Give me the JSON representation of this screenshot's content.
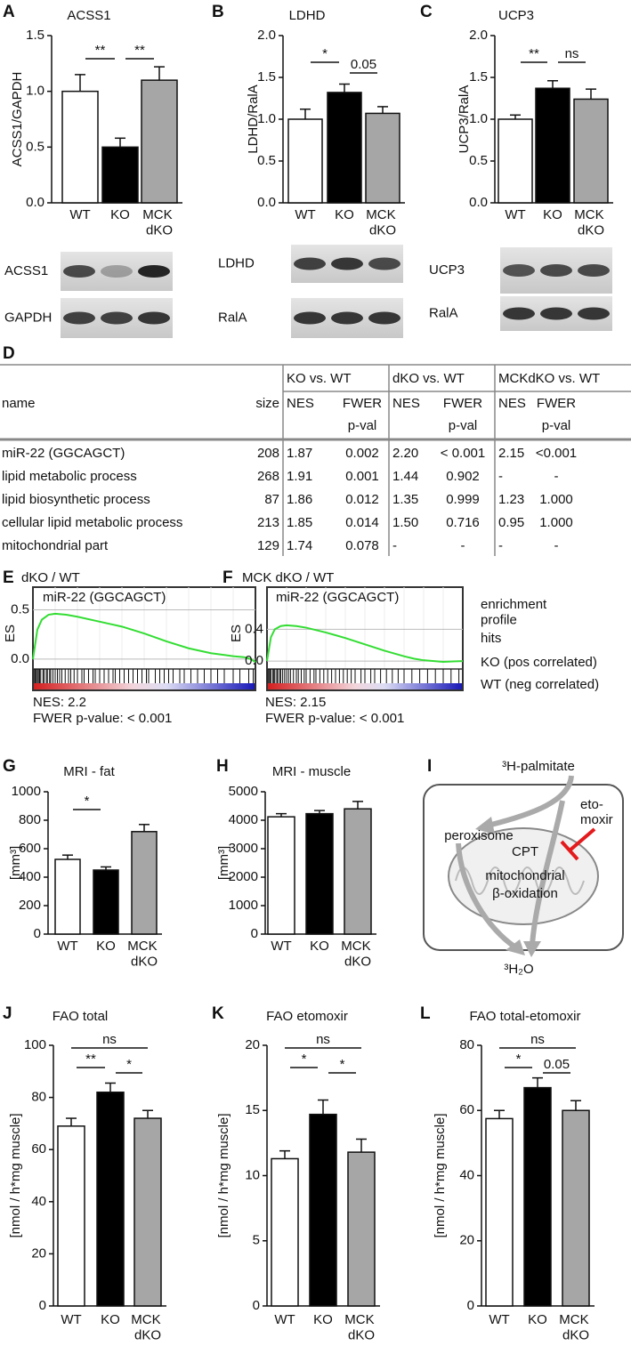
{
  "chart_data": [
    {
      "type": "bar",
      "panel": "A",
      "title": "ACSS1",
      "ylabel": "ACSS1/GAPDH",
      "categories": [
        "WT",
        "KO",
        "MCK dKO"
      ],
      "values": [
        1.0,
        0.5,
        1.1
      ],
      "errors": [
        0.15,
        0.08,
        0.12
      ],
      "colors": [
        "#ffffff",
        "#000000",
        "#a6a6a6"
      ],
      "ylim": [
        0,
        1.5
      ],
      "yticks": [
        {
          "value": 0,
          "label": "0.0"
        },
        0.5,
        {
          "value": 1,
          "label": "1.0"
        },
        1.5
      ],
      "significance": [
        "**",
        "**"
      ],
      "blot_labels": [
        "ACSS1",
        "GAPDH"
      ]
    },
    {
      "type": "bar",
      "panel": "B",
      "title": "LDHD",
      "ylabel": "LDHD/RalA",
      "categories": [
        "WT",
        "KO",
        "MCK dKO"
      ],
      "values": [
        1.0,
        1.32,
        1.07
      ],
      "errors": [
        0.12,
        0.1,
        0.08
      ],
      "colors": [
        "#ffffff",
        "#000000",
        "#a6a6a6"
      ],
      "ylim": [
        0,
        2
      ],
      "yticks": [
        {
          "value": 0,
          "label": "0.0"
        },
        0.5,
        {
          "value": 1,
          "label": "1.0"
        },
        1.5,
        {
          "value": 2,
          "label": "2.0"
        }
      ],
      "significance": [
        "*",
        "0.05"
      ],
      "blot_labels": [
        "LDHD",
        "RalA"
      ]
    },
    {
      "type": "bar",
      "panel": "C",
      "title": "UCP3",
      "ylabel": "UCP3/RalA",
      "categories": [
        "WT",
        "KO",
        "MCK dKO"
      ],
      "values": [
        1.0,
        1.37,
        1.24
      ],
      "errors": [
        0.05,
        0.09,
        0.12
      ],
      "colors": [
        "#ffffff",
        "#000000",
        "#a6a6a6"
      ],
      "ylim": [
        0,
        2
      ],
      "yticks": [
        {
          "value": 0,
          "label": "0.0"
        },
        0.5,
        {
          "value": 1,
          "label": "1.0"
        },
        1.5,
        {
          "value": 2,
          "label": "2.0"
        }
      ],
      "significance": [
        "**",
        "ns"
      ],
      "blot_labels": [
        "UCP3",
        "RalA"
      ]
    },
    {
      "type": "line",
      "panel": "E",
      "title": "dKO / WT",
      "subtitle": "miR-22 (GGCAGCT)",
      "ylabel": "ES",
      "x": [
        0,
        2,
        4,
        7,
        10,
        15,
        20,
        30,
        40,
        50,
        60,
        70,
        80,
        90,
        95,
        98,
        100
      ],
      "values": [
        0,
        0.3,
        0.4,
        0.45,
        0.46,
        0.45,
        0.43,
        0.38,
        0.33,
        0.26,
        0.18,
        0.11,
        0.06,
        0.03,
        0.02,
        0,
        -0.03
      ],
      "color": "#33dd33",
      "xlim": [
        0,
        100
      ],
      "ylim": [
        -0.1,
        0.73
      ],
      "yticks": [
        {
          "value": 0,
          "label": "0.0"
        },
        0.5
      ],
      "grid": true,
      "hits": [
        0.5,
        1,
        1.5,
        2,
        2.5,
        3,
        3.5,
        4.5,
        5,
        6,
        6.5,
        7.5,
        8,
        9,
        10,
        11,
        12,
        13,
        14.5,
        16,
        17,
        18.5,
        20,
        22,
        23,
        25,
        27,
        28,
        30,
        32,
        34,
        36,
        37,
        39,
        41,
        43,
        45,
        47,
        49,
        51,
        52,
        55,
        57,
        59,
        61,
        63,
        66,
        68,
        71,
        74,
        77,
        80,
        83,
        86,
        90,
        93,
        97,
        99
      ],
      "annotations": [
        "NES: 2.2",
        "FWER p-value: < 0.001"
      ]
    },
    {
      "type": "line",
      "panel": "F",
      "title": "MCK dKO / WT",
      "subtitle": "miR-22 (GGCAGCT)",
      "ylabel": "ES",
      "x": [
        0,
        2,
        4,
        7,
        10,
        15,
        20,
        30,
        40,
        50,
        60,
        70,
        75,
        80,
        90,
        100
      ],
      "values": [
        0,
        0.3,
        0.4,
        0.44,
        0.45,
        0.44,
        0.42,
        0.36,
        0.29,
        0.21,
        0.13,
        0.06,
        0.03,
        0.01,
        -0.01,
        0
      ],
      "color": "#33dd33",
      "xlim": [
        0,
        100
      ],
      "ylim": [
        -0.1,
        0.93
      ],
      "yticks": [
        {
          "value": 0,
          "label": "0.0"
        },
        0.4
      ],
      "grid": true,
      "hits": [
        0.5,
        1,
        1.5,
        2,
        3,
        3.5,
        4,
        5,
        5.5,
        6.5,
        7,
        8,
        9,
        10,
        11,
        12,
        13.5,
        15,
        16,
        17.5,
        19,
        20,
        22,
        24,
        25,
        27,
        29,
        31,
        33,
        35,
        37,
        39,
        41,
        43,
        45,
        48,
        50,
        53,
        55,
        58,
        61,
        64,
        67,
        70,
        74,
        78,
        82,
        86,
        90,
        94,
        98
      ],
      "annotations": [
        "NES: 2.15",
        "FWER p-value: < 0.001"
      ]
    },
    {
      "type": "bar",
      "panel": "G",
      "title": "MRI - fat",
      "ylabel": "[mm³]",
      "categories": [
        "WT",
        "KO",
        "MCK dKO"
      ],
      "values": [
        525,
        450,
        720
      ],
      "errors": [
        30,
        22,
        50
      ],
      "colors": [
        "#ffffff",
        "#000000",
        "#a6a6a6"
      ],
      "ylim": [
        0,
        1000
      ],
      "yticks": [
        0,
        200,
        400,
        600,
        800,
        1000
      ],
      "significance": [
        "*"
      ]
    },
    {
      "type": "bar",
      "panel": "H",
      "title": "MRI - muscle",
      "ylabel": "[mm³]",
      "categories": [
        "WT",
        "KO",
        "MCK dKO"
      ],
      "values": [
        4120,
        4230,
        4400
      ],
      "errors": [
        110,
        110,
        260
      ],
      "colors": [
        "#ffffff",
        "#000000",
        "#a6a6a6"
      ],
      "ylim": [
        0,
        5000
      ],
      "yticks": [
        0,
        1000,
        2000,
        3000,
        4000,
        5000
      ]
    },
    {
      "type": "bar",
      "panel": "J",
      "title": "FAO total",
      "ylabel": "[nmol / h*mg muscle]",
      "categories": [
        "WT",
        "KO",
        "MCK dKO"
      ],
      "values": [
        69,
        82,
        72
      ],
      "errors": [
        3,
        3.5,
        3
      ],
      "colors": [
        "#ffffff",
        "#000000",
        "#a6a6a6"
      ],
      "ylim": [
        0,
        100
      ],
      "yticks": [
        0,
        20,
        40,
        60,
        80,
        100
      ],
      "significance": [
        "**",
        "*",
        "ns"
      ]
    },
    {
      "type": "bar",
      "panel": "K",
      "title": "FAO etomoxir",
      "ylabel": "[nmol / h*mg muscle]",
      "categories": [
        "WT",
        "KO",
        "MCK dKO"
      ],
      "values": [
        11.3,
        14.7,
        11.8
      ],
      "errors": [
        0.6,
        1.1,
        1.0
      ],
      "colors": [
        "#ffffff",
        "#000000",
        "#a6a6a6"
      ],
      "ylim": [
        0,
        20
      ],
      "yticks": [
        0,
        5,
        10,
        15,
        20
      ],
      "significance": [
        "*",
        "*",
        "ns"
      ]
    },
    {
      "type": "bar",
      "panel": "L",
      "title": "FAO total-etomoxir",
      "ylabel": "[nmol / h*mg muscle]",
      "categories": [
        "WT",
        "KO",
        "MCK dKO"
      ],
      "values": [
        57.5,
        67,
        60
      ],
      "errors": [
        2.5,
        3,
        3
      ],
      "colors": [
        "#ffffff",
        "#000000",
        "#a6a6a6"
      ],
      "ylim": [
        0,
        80
      ],
      "yticks": [
        0,
        20,
        40,
        60,
        80
      ],
      "significance": [
        "*",
        "0.05",
        "ns"
      ]
    }
  ],
  "gsea_legend": [
    {
      "label": "enrichment profile",
      "color": "#33dd33"
    },
    {
      "label": "hits",
      "color": "#000000"
    },
    {
      "label": "KO (pos correlated)",
      "color": "#e8141b"
    },
    {
      "label": "WT (neg correlated)",
      "color": "#2323c8"
    }
  ],
  "table": {
    "panel": "D",
    "groups": [
      "KO vs. WT",
      "dKO vs. WT",
      "MCKdKO vs. WT"
    ],
    "header": [
      "name",
      "size",
      "NES",
      "FWER",
      "NES",
      "FWER",
      "NES",
      "FWER"
    ],
    "subheader": [
      "p-val",
      "p-val",
      "p-val"
    ],
    "rows": [
      [
        "miR-22 (GGCAGCT)",
        "208",
        "1.87",
        "0.002",
        "2.20",
        "< 0.001",
        "2.15",
        "<0.001"
      ],
      [
        "lipid metabolic process",
        "268",
        "1.91",
        "0.001",
        "1.44",
        "0.902",
        "-",
        "-"
      ],
      [
        "lipid biosynthetic process",
        "87",
        "1.86",
        "0.012",
        "1.35",
        "0.999",
        "1.23",
        "1.000"
      ],
      [
        "cellular lipid metabolic process",
        "213",
        "1.85",
        "0.014",
        "1.50",
        "0.716",
        "0.95",
        "1.000"
      ],
      [
        "mitochondrial part",
        "129",
        "1.74",
        "0.078",
        "-",
        "-",
        "-",
        "-"
      ]
    ]
  },
  "diagram": {
    "panel": "I",
    "input": "³H-palmitate",
    "peroxisome": "peroxisome",
    "inhibitor": [
      "eto-",
      "moxir"
    ],
    "enzyme": "CPT",
    "organelle": [
      "mitochondrial",
      "β-oxidation"
    ],
    "output": "³H₂O"
  }
}
